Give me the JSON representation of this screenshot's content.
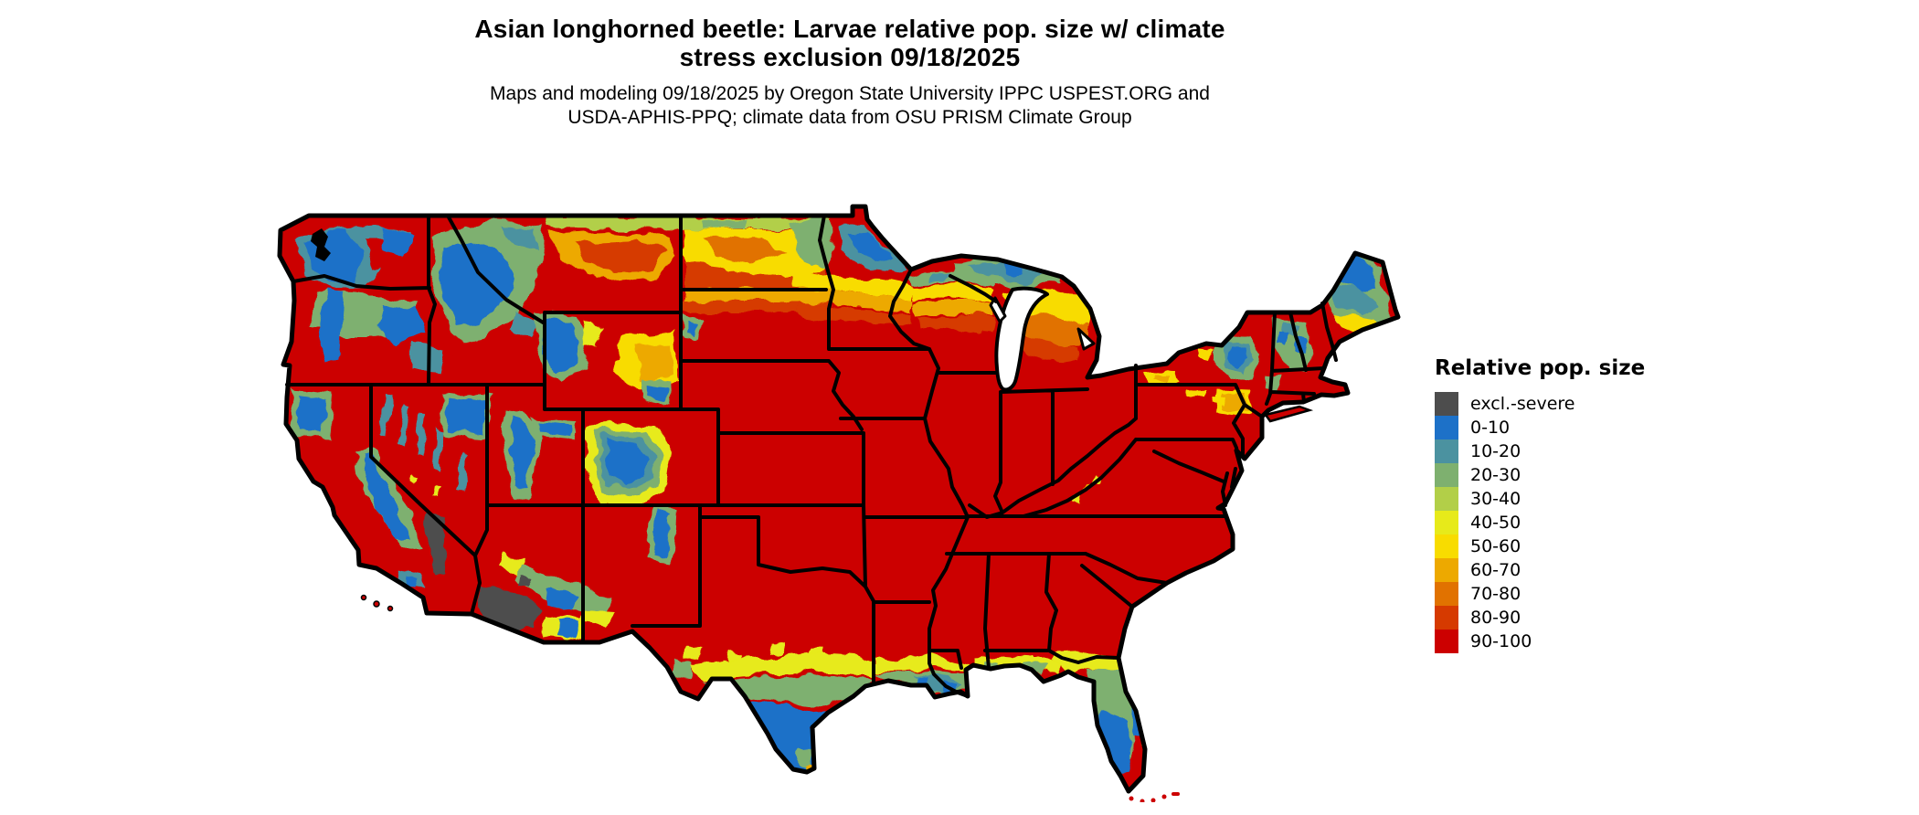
{
  "header": {
    "title_line1": "Asian longhorned beetle: Larvae relative pop. size w/ climate",
    "title_line2": "stress exclusion 09/18/2025",
    "subtitle_line1": "Maps and modeling 09/18/2025 by Oregon State University IPPC USPEST.ORG and",
    "subtitle_line2": "USDA-APHIS-PPQ; climate data from OSU PRISM Climate Group"
  },
  "legend": {
    "title": "Relative pop. size",
    "items": [
      {
        "key": "excl",
        "label": "excl.-severe",
        "color": "#4d4d4d"
      },
      {
        "key": "c0",
        "label": "0-10",
        "color": "#1d71c8"
      },
      {
        "key": "c10",
        "label": "10-20",
        "color": "#4b92a0"
      },
      {
        "key": "c20",
        "label": "20-30",
        "color": "#7eb06f"
      },
      {
        "key": "c30",
        "label": "30-40",
        "color": "#b2cf48"
      },
      {
        "key": "c40",
        "label": "40-50",
        "color": "#e7ea1a"
      },
      {
        "key": "c50",
        "label": "50-60",
        "color": "#f8dc00"
      },
      {
        "key": "c60",
        "label": "60-70",
        "color": "#eda900"
      },
      {
        "key": "c70",
        "label": "70-80",
        "color": "#e17200"
      },
      {
        "key": "c80",
        "label": "80-90",
        "color": "#d63a00"
      },
      {
        "key": "c90",
        "label": "90-100",
        "color": "#cc0000"
      }
    ]
  },
  "map": {
    "border_color": "#000000",
    "water_color": "#ffffff"
  }
}
